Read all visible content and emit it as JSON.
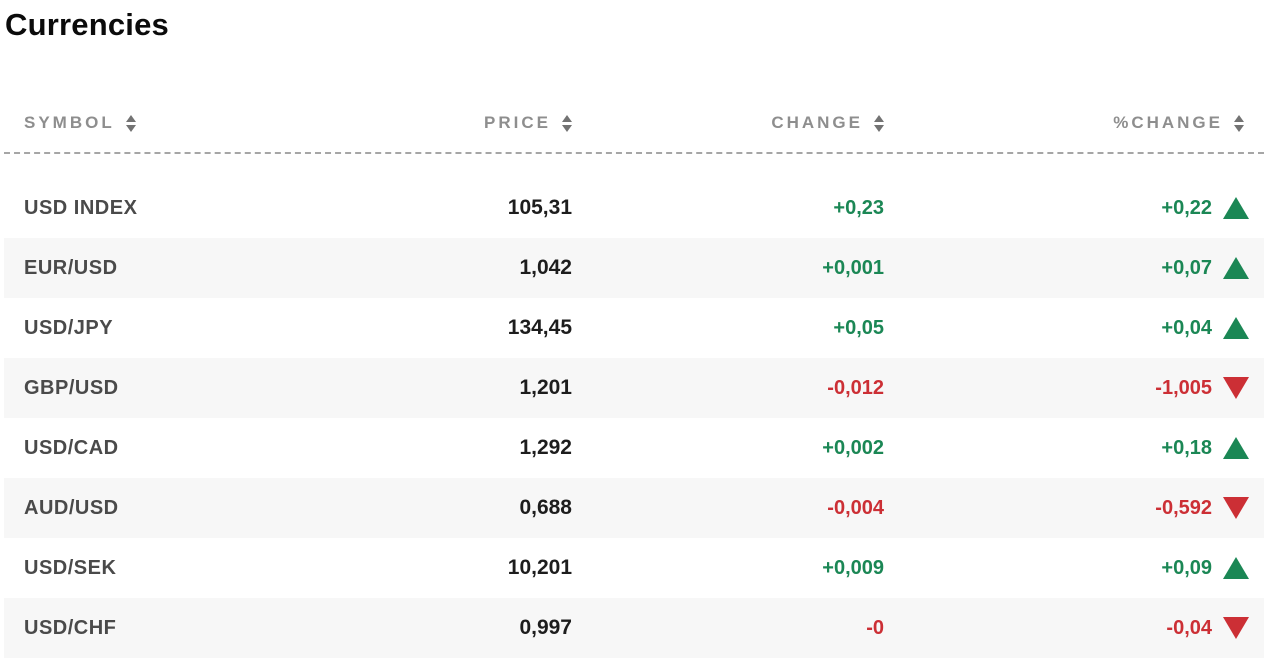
{
  "page": {
    "title": "Currencies"
  },
  "colors": {
    "positive": "#1b8755",
    "negative": "#cc2f35",
    "header_text": "#8e8e8e",
    "symbol_text": "#4a4a4a",
    "price_text": "#1d1d1d",
    "row_alt_bg": "#f7f7f7",
    "divider": "#a6a6a6"
  },
  "icons": {
    "sort": "sort-arrows-up-down",
    "up": "triangle-up",
    "down": "triangle-down"
  },
  "table": {
    "columns": [
      {
        "key": "symbol",
        "label": "SYMBOL",
        "sortable": true
      },
      {
        "key": "price",
        "label": "PRICE",
        "sortable": true
      },
      {
        "key": "change",
        "label": "CHANGE",
        "sortable": true
      },
      {
        "key": "pct_change",
        "label": "%CHANGE",
        "sortable": true
      }
    ],
    "rows": [
      {
        "symbol": "USD INDEX",
        "price": "105,31",
        "change": "+0,23",
        "pct_change": "+0,22",
        "direction": "up"
      },
      {
        "symbol": "EUR/USD",
        "price": "1,042",
        "change": "+0,001",
        "pct_change": "+0,07",
        "direction": "up"
      },
      {
        "symbol": "USD/JPY",
        "price": "134,45",
        "change": "+0,05",
        "pct_change": "+0,04",
        "direction": "up"
      },
      {
        "symbol": "GBP/USD",
        "price": "1,201",
        "change": "-0,012",
        "pct_change": "-1,005",
        "direction": "down"
      },
      {
        "symbol": "USD/CAD",
        "price": "1,292",
        "change": "+0,002",
        "pct_change": "+0,18",
        "direction": "up"
      },
      {
        "symbol": "AUD/USD",
        "price": "0,688",
        "change": "-0,004",
        "pct_change": "-0,592",
        "direction": "down"
      },
      {
        "symbol": "USD/SEK",
        "price": "10,201",
        "change": "+0,009",
        "pct_change": "+0,09",
        "direction": "up"
      },
      {
        "symbol": "USD/CHF",
        "price": "0,997",
        "change": "-0",
        "pct_change": "-0,04",
        "direction": "down"
      }
    ]
  }
}
